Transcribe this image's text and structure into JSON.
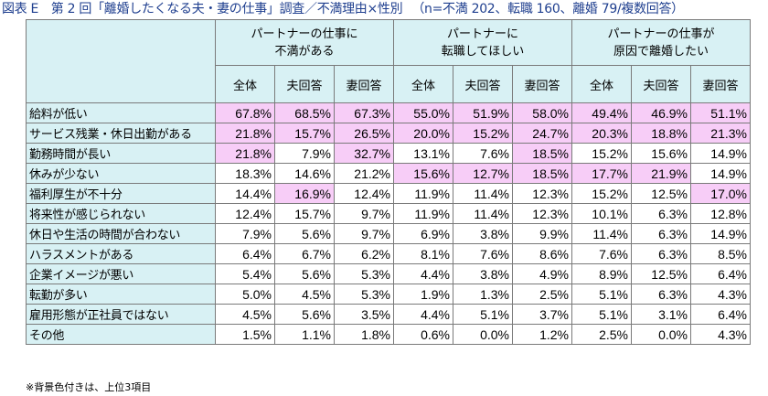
{
  "title": "図表 E　第 2 回「離婚したくなる夫・妻の仕事」調査／不満理由×性別",
  "subtitle": "（n=不満 202、転職 160、離婚 79/複数回答）",
  "groups": [
    {
      "label": "パートナーの仕事に\n不満がある"
    },
    {
      "label": "パートナーに\n転職してほしい"
    },
    {
      "label": "パートナーの仕事が\n原因で離婚したい"
    }
  ],
  "subheaders": [
    "全体",
    "夫回答",
    "妻回答",
    "全体",
    "夫回答",
    "妻回答",
    "全体",
    "夫回答",
    "妻回答"
  ],
  "rows": [
    {
      "label": "給料が低い",
      "values": [
        "67.8%",
        "68.5%",
        "67.3%",
        "55.0%",
        "51.9%",
        "58.0%",
        "49.4%",
        "46.9%",
        "51.1%"
      ],
      "highlight": [
        true,
        true,
        true,
        true,
        true,
        true,
        true,
        true,
        true
      ]
    },
    {
      "label": "サービス残業・休日出勤がある",
      "values": [
        "21.8%",
        "15.7%",
        "26.5%",
        "20.0%",
        "15.2%",
        "24.7%",
        "20.3%",
        "18.8%",
        "21.3%"
      ],
      "highlight": [
        true,
        true,
        true,
        true,
        true,
        true,
        true,
        true,
        true
      ]
    },
    {
      "label": "勤務時間が長い",
      "values": [
        "21.8%",
        "7.9%",
        "32.7%",
        "13.1%",
        "7.6%",
        "18.5%",
        "15.2%",
        "15.6%",
        "14.9%"
      ],
      "highlight": [
        true,
        false,
        true,
        false,
        false,
        true,
        false,
        false,
        false
      ]
    },
    {
      "label": "休みが少ない",
      "values": [
        "18.3%",
        "14.6%",
        "21.2%",
        "15.6%",
        "12.7%",
        "18.5%",
        "17.7%",
        "21.9%",
        "14.9%"
      ],
      "highlight": [
        false,
        false,
        false,
        true,
        true,
        true,
        true,
        true,
        false
      ]
    },
    {
      "label": "福利厚生が不十分",
      "values": [
        "14.4%",
        "16.9%",
        "12.4%",
        "11.9%",
        "11.4%",
        "12.3%",
        "15.2%",
        "12.5%",
        "17.0%"
      ],
      "highlight": [
        false,
        true,
        false,
        false,
        false,
        false,
        false,
        false,
        true
      ]
    },
    {
      "label": "将来性が感じられない",
      "values": [
        "12.4%",
        "15.7%",
        "9.7%",
        "11.9%",
        "11.4%",
        "12.3%",
        "10.1%",
        "6.3%",
        "12.8%"
      ],
      "highlight": [
        false,
        false,
        false,
        false,
        false,
        false,
        false,
        false,
        false
      ]
    },
    {
      "label": "休日や生活の時間が合わない",
      "values": [
        "7.9%",
        "5.6%",
        "9.7%",
        "6.9%",
        "3.8%",
        "9.9%",
        "11.4%",
        "6.3%",
        "14.9%"
      ],
      "highlight": [
        false,
        false,
        false,
        false,
        false,
        false,
        false,
        false,
        false
      ]
    },
    {
      "label": "ハラスメントがある",
      "values": [
        "6.4%",
        "6.7%",
        "6.2%",
        "8.1%",
        "7.6%",
        "8.6%",
        "7.6%",
        "6.3%",
        "8.5%"
      ],
      "highlight": [
        false,
        false,
        false,
        false,
        false,
        false,
        false,
        false,
        false
      ]
    },
    {
      "label": "企業イメージが悪い",
      "values": [
        "5.4%",
        "5.6%",
        "5.3%",
        "4.4%",
        "3.8%",
        "4.9%",
        "8.9%",
        "12.5%",
        "6.4%"
      ],
      "highlight": [
        false,
        false,
        false,
        false,
        false,
        false,
        false,
        false,
        false
      ]
    },
    {
      "label": "転勤が多い",
      "values": [
        "5.0%",
        "4.5%",
        "5.3%",
        "1.9%",
        "1.3%",
        "2.5%",
        "5.1%",
        "6.3%",
        "4.3%"
      ],
      "highlight": [
        false,
        false,
        false,
        false,
        false,
        false,
        false,
        false,
        false
      ]
    },
    {
      "label": "雇用形態が正社員ではない",
      "values": [
        "4.5%",
        "5.6%",
        "3.5%",
        "4.4%",
        "5.1%",
        "3.7%",
        "5.1%",
        "3.1%",
        "6.4%"
      ],
      "highlight": [
        false,
        false,
        false,
        false,
        false,
        false,
        false,
        false,
        false
      ]
    },
    {
      "label": "その他",
      "values": [
        "1.5%",
        "1.1%",
        "1.8%",
        "0.6%",
        "0.0%",
        "1.2%",
        "2.5%",
        "0.0%",
        "4.3%"
      ],
      "highlight": [
        false,
        false,
        false,
        false,
        false,
        false,
        false,
        false,
        false
      ]
    }
  ],
  "note": "※背景色付きは、上位3項目",
  "colors": {
    "header_bg": "#d8f1f4",
    "highlight_bg": "#f7cdf7",
    "title_color": "#1f3f8f",
    "border": "#7a7a7a"
  }
}
